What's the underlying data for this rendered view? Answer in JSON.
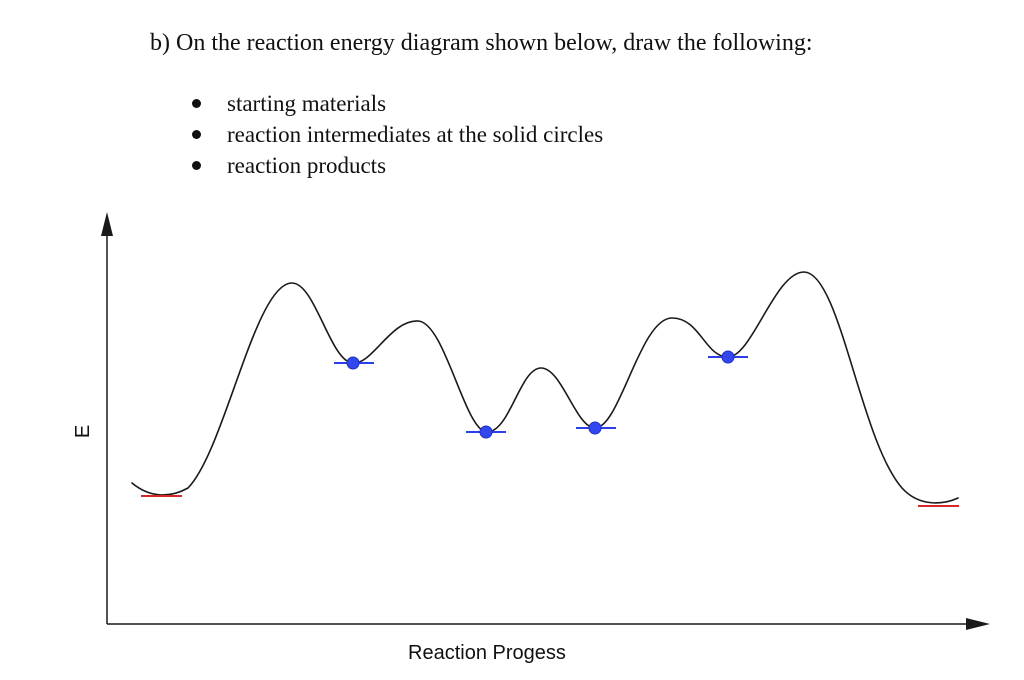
{
  "question": {
    "text": "b) On the reaction energy diagram shown below, draw the following:"
  },
  "bullets": [
    {
      "text": "starting materials"
    },
    {
      "text": "reaction intermediates at the solid circles"
    },
    {
      "text": "reaction products"
    }
  ],
  "diagram": {
    "y_axis_label": "E",
    "x_axis_label": "Reaction Progess",
    "colors": {
      "curve": "#1a1a1a",
      "axis": "#1a1a1a",
      "intermediate_marker": "#2b3fe6",
      "intermediate_line": "#2b3fe6",
      "endpoint_line": "#d62828"
    }
  }
}
